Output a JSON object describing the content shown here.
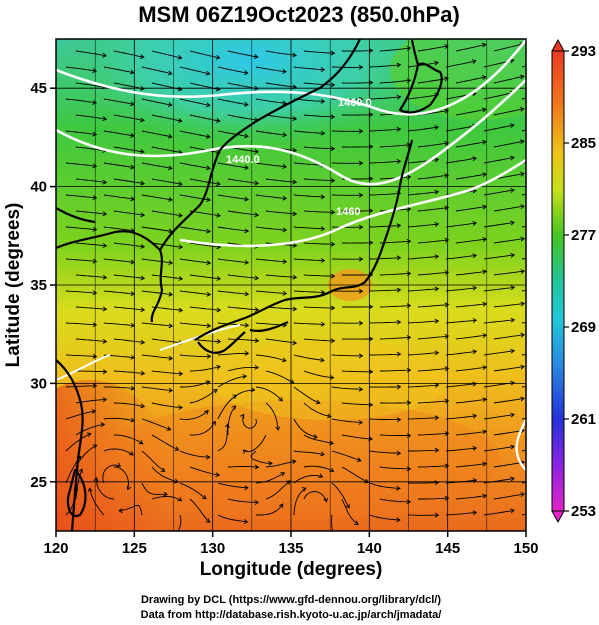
{
  "title": "MSM 06Z19Oct2023 (850.0hPa)",
  "xlabel": "Longitude (degrees)",
  "ylabel": "Latitude  (degrees)",
  "x_ticks": [
    "120",
    "125",
    "130",
    "135",
    "140",
    "145",
    "150"
  ],
  "y_ticks": [
    "25",
    "30",
    "35",
    "40",
    "45"
  ],
  "colorbar_ticks": [
    "293",
    "285",
    "277",
    "269",
    "261",
    "253"
  ],
  "contour_labels": [
    "1460.0",
    "1440.0",
    "1460"
  ],
  "credits": {
    "line1": "Drawing by DCL (https://www.gfd-dennou.org/library/dcl/)",
    "line2": "Data from http://database.rish.kyoto-u.ac.jp/arch/jmadata/"
  },
  "colors": {
    "warm": "#e8401a",
    "orange": "#f08a1e",
    "yellow": "#e8d81a",
    "green": "#3ec21f",
    "cyan": "#22c8c8",
    "blue": "#2248e0",
    "magenta": "#e020e0"
  },
  "chart_data": {
    "type": "heatmap",
    "projection": "lat-lon",
    "xlim": [
      120,
      150
    ],
    "ylim": [
      22.5,
      47.5
    ],
    "colorbar_range": [
      253,
      293
    ],
    "overlays": [
      "streamlines",
      "geopotential-height-contours",
      "coastlines",
      "grid"
    ],
    "grid": true,
    "legend": "colorbar-right"
  }
}
